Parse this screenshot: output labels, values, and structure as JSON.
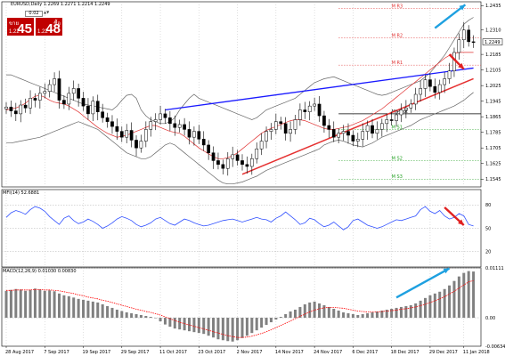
{
  "main_title": "EURUSD,Daily  1.2269 1.2271 1.2214 1.2249",
  "trade_panel": {
    "sell_label": "ขาย",
    "sell_small": "1.22",
    "sell_big": "45",
    "buy_label": "ซื้อ",
    "buy_small": "1.22",
    "buy_big": "48",
    "lot": "0.02",
    "arrows": "▲▼"
  },
  "price_axis": {
    "labels": [
      "1.2435",
      "1.2310",
      "1.2185",
      "1.2105",
      "1.2025",
      "1.1945",
      "1.1865",
      "1.1785",
      "1.1705",
      "1.1625",
      "1.1545"
    ],
    "current": "1.2249"
  },
  "pivot_labels": [
    {
      "text": "M R3"
    },
    {
      "text": "M R2"
    },
    {
      "text": "M R1"
    },
    {
      "text": "M Pivot"
    },
    {
      "text": "M S1"
    },
    {
      "text": "M S2"
    },
    {
      "text": "M S3"
    }
  ],
  "mfi": {
    "title": "MFI(14) 52.6881",
    "levels": [
      "80",
      "50",
      "20"
    ]
  },
  "macd": {
    "title": "MACD(12,26,9) 0.01030 0.00830",
    "levels": [
      "0.01111",
      "0.00",
      "-0.00634"
    ]
  },
  "date_labels": [
    "28 Aug 2017",
    "7 Sep 2017",
    "19 Sep 2017",
    "29 Sep 2017",
    "11 Oct 2017",
    "23 Oct 2017",
    "2 Nov 2017",
    "14 Nov 2017",
    "24 Nov 2017",
    "6 Dec 2017",
    "18 Dec 2017",
    "29 Dec 2017",
    "11 Jan 2018"
  ],
  "colors": {
    "bullish": "#000000",
    "bearish": "#000000",
    "bollinger": "#666666",
    "ma": "#e03030",
    "resistance": "#1a1aff",
    "support": "#e53030",
    "mfi": "#3050ff",
    "macd_hist": "#808080",
    "macd_signal": "#ff0000",
    "arrow_up": "#1ea0e0",
    "arrow_down": "#e02020",
    "pivot_r": "#e03030",
    "pivot_s": "#20a020",
    "grid": "#b0b0b0"
  },
  "chart_data": {
    "type": "candlestick",
    "symbol": "EURUSD",
    "timeframe": "Daily",
    "ohlc_last": {
      "open": 1.2269,
      "high": 1.2271,
      "low": 1.2214,
      "close": 1.2249
    },
    "y_range": [
      1.1505,
      1.2455
    ],
    "closes": [
      1.1915,
      1.1895,
      1.188,
      1.1925,
      1.191,
      1.196,
      1.195,
      1.1985,
      1.1995,
      1.203,
      1.206,
      1.195,
      1.193,
      1.1985,
      1.201,
      1.196,
      1.192,
      1.188,
      1.1945,
      1.189,
      1.186,
      1.184,
      1.1815,
      1.179,
      1.176,
      1.1795,
      1.1745,
      1.1705,
      1.174,
      1.18,
      1.184,
      1.185,
      1.188,
      1.186,
      1.183,
      1.181,
      1.1825,
      1.18,
      1.176,
      1.179,
      1.175,
      1.172,
      1.168,
      1.164,
      1.162,
      1.16,
      1.165,
      1.167,
      1.164,
      1.162,
      1.161,
      1.165,
      1.17,
      1.174,
      1.179,
      1.18,
      1.184,
      1.183,
      1.178,
      1.18,
      1.185,
      1.19,
      1.189,
      1.192,
      1.193,
      1.187,
      1.182,
      1.18,
      1.176,
      1.178,
      1.179,
      1.177,
      1.174,
      1.175,
      1.179,
      1.182,
      1.178,
      1.18,
      1.183,
      1.185,
      1.1845,
      1.1875,
      1.19,
      1.191,
      1.193,
      1.198,
      1.201,
      1.2055,
      1.202,
      1.199,
      1.203,
      1.206,
      1.21,
      1.2195,
      1.226,
      1.231,
      1.225,
      1.2249
    ],
    "bollinger_upper": [
      1.208,
      1.208,
      1.207,
      1.206,
      1.205,
      1.204,
      1.203,
      1.202,
      1.201,
      1.2,
      1.199,
      1.198,
      1.197,
      1.196,
      1.195,
      1.194,
      1.193,
      1.1925,
      1.192,
      1.1915,
      1.191,
      1.1905,
      1.19,
      1.192,
      1.195,
      1.1975,
      1.198,
      1.196,
      1.19,
      1.187,
      1.185,
      1.184,
      1.183,
      1.183,
      1.184,
      1.186,
      1.19,
      1.193,
      1.196,
      1.198,
      1.196,
      1.195,
      1.194,
      1.193,
      1.192,
      1.191,
      1.19,
      1.189,
      1.188,
      1.187,
      1.186,
      1.185,
      1.186,
      1.188,
      1.19,
      1.191,
      1.192,
      1.193,
      1.194,
      1.195,
      1.196,
      1.198,
      1.2,
      1.202,
      1.204,
      1.205,
      1.206,
      1.2065,
      1.207,
      1.206,
      1.205,
      1.204,
      1.203,
      1.202,
      1.201,
      1.2,
      1.199,
      1.198,
      1.1975,
      1.198,
      1.199,
      1.2,
      1.201,
      1.202,
      1.203,
      1.204,
      1.205,
      1.207,
      1.209,
      1.212,
      1.215,
      1.218,
      1.222,
      1.226,
      1.23,
      1.234,
      1.236,
      1.2375
    ],
    "bollinger_lower": [
      1.173,
      1.173,
      1.1735,
      1.174,
      1.1745,
      1.175,
      1.1755,
      1.176,
      1.177,
      1.178,
      1.179,
      1.18,
      1.181,
      1.182,
      1.183,
      1.184,
      1.183,
      1.182,
      1.181,
      1.18,
      1.178,
      1.176,
      1.174,
      1.172,
      1.17,
      1.168,
      1.167,
      1.166,
      1.165,
      1.165,
      1.166,
      1.168,
      1.17,
      1.172,
      1.173,
      1.172,
      1.17,
      1.168,
      1.166,
      1.164,
      1.162,
      1.16,
      1.158,
      1.156,
      1.154,
      1.1525,
      1.152,
      1.152,
      1.1525,
      1.153,
      1.154,
      1.155,
      1.156,
      1.1575,
      1.159,
      1.16,
      1.161,
      1.162,
      1.163,
      1.164,
      1.165,
      1.166,
      1.167,
      1.168,
      1.169,
      1.17,
      1.172,
      1.173,
      1.174,
      1.1745,
      1.174,
      1.173,
      1.172,
      1.1715,
      1.171,
      1.172,
      1.173,
      1.1745,
      1.176,
      1.177,
      1.178,
      1.179,
      1.18,
      1.181,
      1.182,
      1.1835,
      1.185,
      1.186,
      1.187,
      1.188,
      1.189,
      1.19,
      1.191,
      1.192,
      1.1935,
      1.195,
      1.197,
      1.199
    ],
    "ma": [
      1.19,
      1.1905,
      1.191,
      1.192,
      1.1935,
      1.1955,
      1.197,
      1.1975,
      1.1965,
      1.195,
      1.194,
      1.1935,
      1.193,
      1.192,
      1.1905,
      1.189,
      1.187,
      1.185,
      1.183,
      1.181,
      1.1795,
      1.178,
      1.177,
      1.176,
      1.1765,
      1.177,
      1.178,
      1.179,
      1.18,
      1.181,
      1.182,
      1.182,
      1.181,
      1.18,
      1.179,
      1.1785,
      1.178,
      1.1765,
      1.1745,
      1.1725,
      1.1705,
      1.169,
      1.1675,
      1.166,
      1.165,
      1.165,
      1.1655,
      1.1665,
      1.168,
      1.17,
      1.172,
      1.174,
      1.176,
      1.178,
      1.1795,
      1.1805,
      1.1815,
      1.1825,
      1.1835,
      1.1845,
      1.185,
      1.185,
      1.1845,
      1.1835,
      1.1825,
      1.1815,
      1.1805,
      1.18,
      1.18,
      1.1805,
      1.181,
      1.1815,
      1.1825,
      1.1835,
      1.1845,
      1.186,
      1.1875,
      1.189,
      1.1905,
      1.1925,
      1.1945,
      1.1965,
      1.1985,
      1.2005,
      1.2025,
      1.2045,
      1.2065,
      1.2085,
      1.2105,
      1.2125,
      1.2145,
      1.2165,
      1.218,
      1.219,
      1.2195,
      1.2195,
      1.2195,
      1.2195
    ],
    "resistance_line": {
      "from": {
        "i": 33,
        "y": 1.19
      },
      "to": {
        "i": 97,
        "y": 1.2115
      }
    },
    "support_line": {
      "from": {
        "i": 49,
        "y": 1.157
      },
      "to": {
        "i": 97,
        "y": 1.206
      }
    },
    "pivots": [
      {
        "name": "M R3",
        "y": 1.242
      },
      {
        "name": "M R2",
        "y": 1.227
      },
      {
        "name": "M R1",
        "y": 1.213
      },
      {
        "name": "M Pivot",
        "y": 1.188
      },
      {
        "name": "M S1",
        "y": 1.18
      },
      {
        "name": "M S2",
        "y": 1.164
      },
      {
        "name": "M S3",
        "y": 1.1545
      }
    ],
    "mfi_range": [
      0,
      100
    ],
    "mfi_levels": [
      80,
      50,
      20
    ],
    "mfi_values": [
      64,
      70,
      73,
      71,
      68,
      74,
      78,
      76,
      72,
      65,
      60,
      55,
      63,
      66,
      60,
      56,
      58,
      62,
      59,
      55,
      50,
      53,
      57,
      62,
      65,
      63,
      60,
      55,
      52,
      54,
      57,
      62,
      64,
      60,
      56,
      54,
      58,
      62,
      60,
      57,
      55,
      53,
      54,
      56,
      58,
      60,
      61,
      62,
      60,
      58,
      60,
      62,
      64,
      62,
      61,
      58,
      63,
      66,
      71,
      66,
      61,
      55,
      57,
      63,
      61,
      56,
      52,
      54,
      58,
      53,
      48,
      52,
      60,
      62,
      58,
      54,
      52,
      50,
      52,
      55,
      58,
      61,
      60,
      62,
      64,
      66,
      74,
      78,
      72,
      69,
      73,
      66,
      62,
      64,
      69,
      66,
      55,
      53
    ],
    "macd_range": [
      -0.00634,
      0.01111
    ],
    "macd_hist": [
      0.006,
      0.0062,
      0.0064,
      0.0063,
      0.006,
      0.0062,
      0.0065,
      0.0063,
      0.006,
      0.0061,
      0.0059,
      0.0054,
      0.005,
      0.0048,
      0.0045,
      0.0042,
      0.004,
      0.0038,
      0.0036,
      0.0034,
      0.003,
      0.0026,
      0.0022,
      0.0018,
      0.0015,
      0.0012,
      0.001,
      0.0008,
      0.0006,
      0.0004,
      0.0002,
      0.0,
      -0.0008,
      -0.0015,
      -0.002,
      -0.0024,
      -0.0026,
      -0.0028,
      -0.003,
      -0.0032,
      -0.0034,
      -0.0036,
      -0.004,
      -0.0044,
      -0.0048,
      -0.005,
      -0.0052,
      -0.0053,
      -0.005,
      -0.0045,
      -0.004,
      -0.0034,
      -0.0028,
      -0.0022,
      -0.0016,
      -0.001,
      -0.0004,
      0.0002,
      0.0008,
      0.0014,
      0.0018,
      0.0024,
      0.003,
      0.0034,
      0.0036,
      0.0032,
      0.0028,
      0.0024,
      0.002,
      0.0016,
      0.0012,
      0.001,
      0.0008,
      0.0006,
      0.0008,
      0.001,
      0.0012,
      0.0014,
      0.0016,
      0.0018,
      0.002,
      0.0022,
      0.0024,
      0.0026,
      0.0028,
      0.0032,
      0.0038,
      0.0044,
      0.005,
      0.0054,
      0.0058,
      0.0064,
      0.0072,
      0.0082,
      0.0092,
      0.01,
      0.0104,
      0.0103
    ],
    "macd_signal": [
      0.0061,
      0.0061,
      0.0062,
      0.0062,
      0.0062,
      0.0062,
      0.0063,
      0.0063,
      0.0062,
      0.0062,
      0.0061,
      0.006,
      0.0058,
      0.0056,
      0.0054,
      0.0051,
      0.0049,
      0.0046,
      0.0044,
      0.0042,
      0.0039,
      0.0037,
      0.0034,
      0.0031,
      0.0028,
      0.0025,
      0.0022,
      0.0019,
      0.0017,
      0.0014,
      0.0012,
      0.0009,
      0.0006,
      0.0002,
      -0.0002,
      -0.0006,
      -0.001,
      -0.0013,
      -0.0016,
      -0.0019,
      -0.0022,
      -0.0025,
      -0.0028,
      -0.0031,
      -0.0034,
      -0.0037,
      -0.004,
      -0.0042,
      -0.0044,
      -0.0044,
      -0.0043,
      -0.0041,
      -0.0038,
      -0.0035,
      -0.0031,
      -0.0027,
      -0.0022,
      -0.0017,
      -0.0012,
      -0.0007,
      -0.0002,
      0.0003,
      0.0008,
      0.0013,
      0.0017,
      0.002,
      0.0022,
      0.0023,
      0.0023,
      0.0022,
      0.0021,
      0.0019,
      0.0017,
      0.0015,
      0.0014,
      0.0013,
      0.0013,
      0.0013,
      0.0014,
      0.0015,
      0.0016,
      0.0017,
      0.0019,
      0.002,
      0.0022,
      0.0024,
      0.0027,
      0.003,
      0.0034,
      0.0038,
      0.0042,
      0.0047,
      0.0053,
      0.0059,
      0.0066,
      0.0073,
      0.008,
      0.0083
    ]
  }
}
